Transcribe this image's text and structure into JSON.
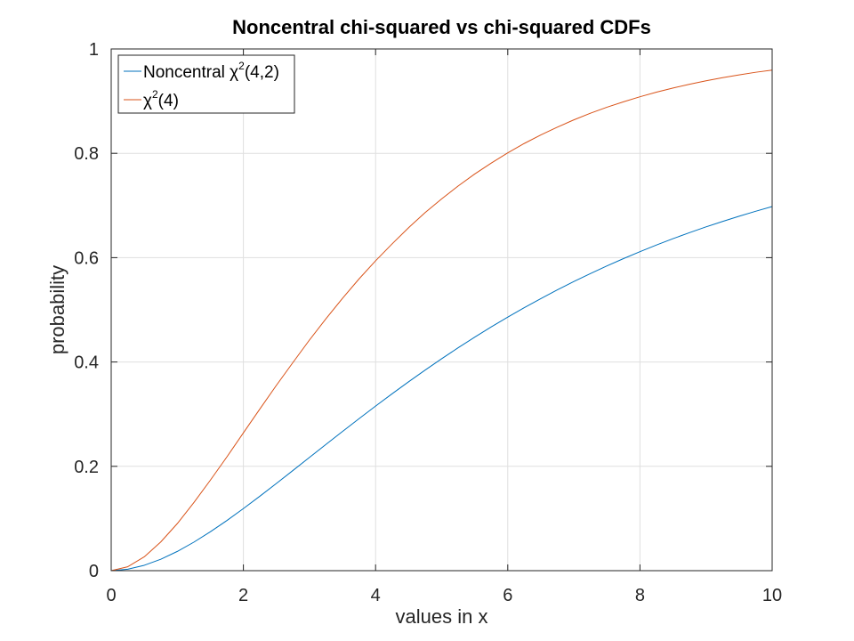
{
  "chart_data": {
    "type": "line",
    "title": "Noncentral chi-squared vs chi-squared CDFs",
    "xlabel": "values in x",
    "ylabel": "probability",
    "xlim": [
      0,
      10
    ],
    "ylim": [
      0,
      1
    ],
    "grid": true,
    "legend_position": "top-left",
    "x_ticks": [
      "0",
      "2",
      "4",
      "6",
      "8",
      "10"
    ],
    "y_ticks": [
      "0",
      "0.2",
      "0.4",
      "0.6",
      "0.8",
      "1"
    ],
    "colors": {
      "axis": "#262626",
      "grid": "#dfdfdf"
    },
    "series": [
      {
        "name": "Noncentral χ²(4,2)",
        "legend": {
          "pre": "Noncentral χ",
          "sup": "2",
          "post": "(4,2)"
        },
        "color": "#0072bd",
        "x": [
          0,
          0.25,
          0.5,
          0.75,
          1,
          1.25,
          1.5,
          1.75,
          2,
          2.25,
          2.5,
          2.75,
          3,
          3.25,
          3.5,
          3.75,
          4,
          4.25,
          4.5,
          4.75,
          5,
          5.25,
          5.5,
          5.75,
          6,
          6.25,
          6.5,
          6.75,
          7,
          7.25,
          7.5,
          7.75,
          8,
          8.25,
          8.5,
          8.75,
          9,
          9.25,
          9.5,
          9.75,
          10
        ],
        "y": [
          0,
          0.0027,
          0.0103,
          0.0219,
          0.0369,
          0.0546,
          0.0745,
          0.0961,
          0.119,
          0.1428,
          0.1673,
          0.1921,
          0.2171,
          0.2421,
          0.2669,
          0.2914,
          0.3155,
          0.3391,
          0.3621,
          0.3845,
          0.4062,
          0.4273,
          0.4476,
          0.4672,
          0.486,
          0.5041,
          0.5215,
          0.5382,
          0.5542,
          0.5695,
          0.5842,
          0.5981,
          0.6115,
          0.6242,
          0.6364,
          0.6479,
          0.659,
          0.6694,
          0.6794,
          0.6889,
          0.6979
        ]
      },
      {
        "name": "χ²(4)",
        "legend": {
          "pre": "χ",
          "sup": "2",
          "post": "(4)"
        },
        "color": "#d95319",
        "x": [
          0,
          0.25,
          0.5,
          0.75,
          1,
          1.25,
          1.5,
          1.75,
          2,
          2.25,
          2.5,
          2.75,
          3,
          3.25,
          3.5,
          3.75,
          4,
          4.25,
          4.5,
          4.75,
          5,
          5.25,
          5.5,
          5.75,
          6,
          6.25,
          6.5,
          6.75,
          7,
          7.25,
          7.5,
          7.75,
          8,
          8.25,
          8.5,
          8.75,
          9,
          9.25,
          9.5,
          9.75,
          10
        ],
        "y": [
          0,
          0.0075,
          0.0265,
          0.055,
          0.0902,
          0.1304,
          0.1734,
          0.218,
          0.2642,
          0.31,
          0.3554,
          0.3991,
          0.4422,
          0.483,
          0.5221,
          0.5593,
          0.594,
          0.6264,
          0.6575,
          0.6865,
          0.7127,
          0.7374,
          0.7603,
          0.7813,
          0.8009,
          0.8189,
          0.8352,
          0.8501,
          0.8641,
          0.8768,
          0.8883,
          0.8987,
          0.9084,
          0.9172,
          0.9251,
          0.9324,
          0.9389,
          0.9449,
          0.9503,
          0.9553,
          0.9595
        ]
      }
    ]
  }
}
